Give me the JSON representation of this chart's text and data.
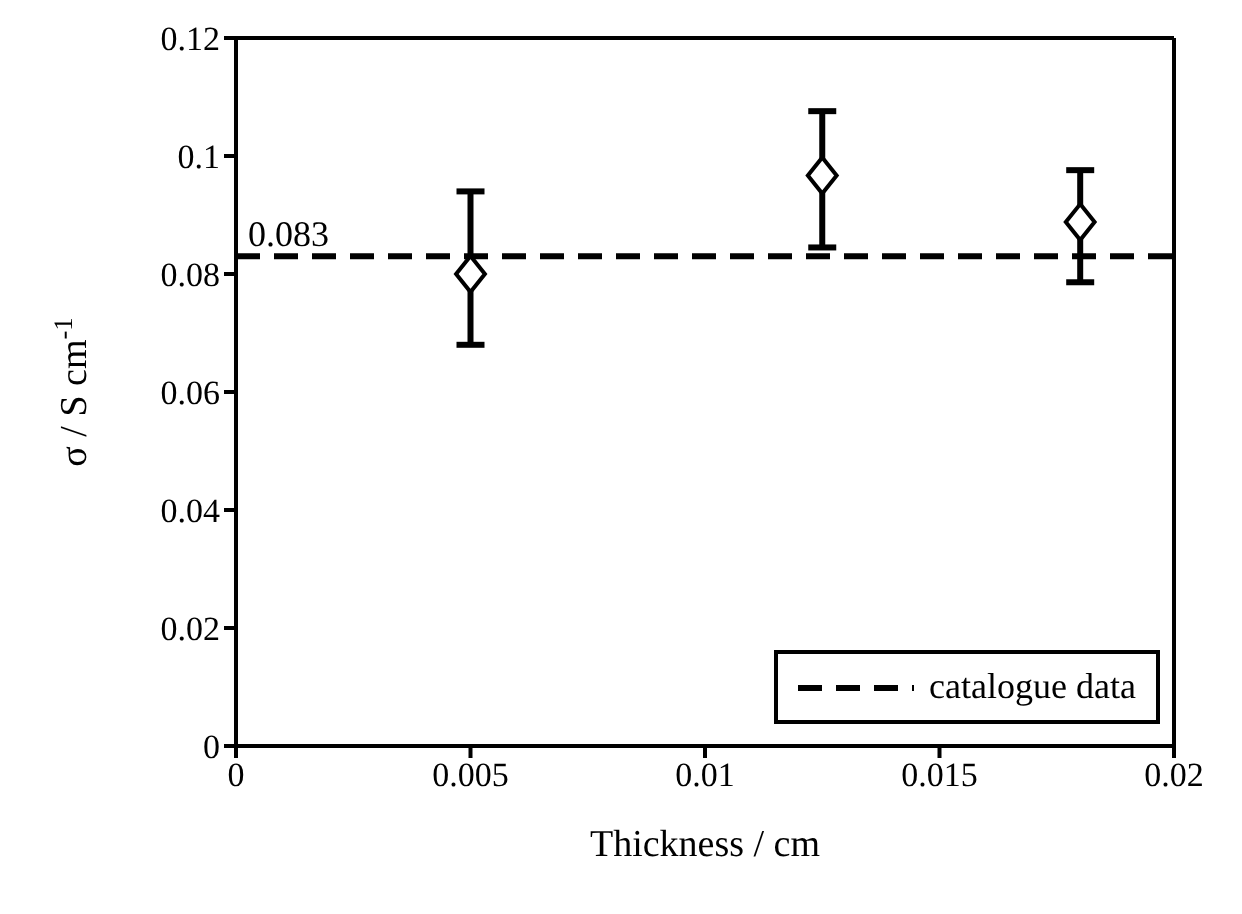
{
  "chart_data": {
    "type": "scatter",
    "xlabel": "Thickness / cm",
    "ylabel": "σ / S cm$^{-1}$",
    "x": [
      0.005,
      0.0125,
      0.018
    ],
    "series": [
      {
        "color": "#000000",
        "values": [
          0.08,
          0.0967,
          0.0888
        ],
        "errors": [
          [
            0.068,
            0.094
          ],
          [
            0.0845,
            0.1076
          ],
          [
            0.0786,
            0.0976
          ]
        ]
      }
    ],
    "marker": "diamond",
    "xlim": [
      0,
      0.02
    ],
    "xticks": [
      0,
      0.005,
      0.01,
      0.015,
      0.02
    ],
    "ylim": [
      0,
      0.12
    ],
    "yticks": [
      0,
      0.02,
      0.04,
      0.06,
      0.08,
      0.1,
      0.12
    ],
    "ref_lines": [
      {
        "axis": "y",
        "value": 0.083,
        "label": "catalogue data",
        "color": "#000000",
        "line_style": "dashed"
      }
    ],
    "annotations": [
      {
        "text": "0.083",
        "x": 0,
        "y": 0.083
      }
    ],
    "legend": "bottom right"
  }
}
